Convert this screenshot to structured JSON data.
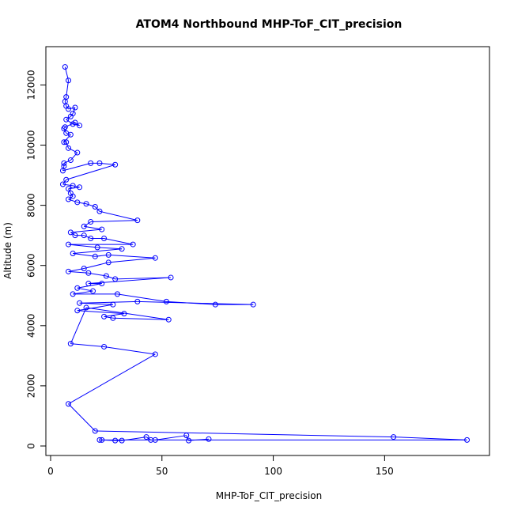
{
  "chart_data": {
    "type": "line",
    "title": "ATOM4 Northbound MHP-ToF_CIT_precision",
    "xlabel": "MHP-ToF_CIT_precision",
    "ylabel": "Altitude (m)",
    "xlim": [
      0,
      190
    ],
    "ylim": [
      0,
      12800
    ],
    "xticks": [
      0,
      50,
      100,
      150
    ],
    "yticks": [
      0,
      2000,
      4000,
      6000,
      8000,
      10000,
      12000
    ],
    "grid": false,
    "legend": "none",
    "series_color": "#0000ff",
    "marker": "open-circle",
    "series": [
      {
        "values": [
          [
            6.5,
            12600
          ],
          [
            8,
            12150
          ],
          [
            7,
            11600
          ],
          [
            6.5,
            11450
          ],
          [
            7,
            11300
          ],
          [
            8,
            11200
          ],
          [
            11,
            11250
          ],
          [
            10,
            11050
          ],
          [
            9,
            10950
          ],
          [
            7,
            10850
          ],
          [
            10,
            10700
          ],
          [
            13,
            10650
          ],
          [
            11,
            10750
          ],
          [
            6.5,
            10600
          ],
          [
            6,
            10550
          ],
          [
            7,
            10400
          ],
          [
            9,
            10350
          ],
          [
            6,
            10100
          ],
          [
            7,
            10100
          ],
          [
            8,
            9900
          ],
          [
            12,
            9750
          ],
          [
            9,
            9500
          ],
          [
            6,
            9400
          ],
          [
            6,
            9300
          ],
          [
            5.5,
            9150
          ],
          [
            18,
            9400
          ],
          [
            22,
            9400
          ],
          [
            29,
            9350
          ],
          [
            7,
            8850
          ],
          [
            5.5,
            8700
          ],
          [
            10,
            8650
          ],
          [
            13,
            8600
          ],
          [
            8,
            8550
          ],
          [
            9,
            8400
          ],
          [
            10,
            8300
          ],
          [
            8,
            8200
          ],
          [
            12,
            8100
          ],
          [
            16,
            8050
          ],
          [
            20,
            7950
          ],
          [
            22,
            7800
          ],
          [
            39,
            7500
          ],
          [
            18,
            7450
          ],
          [
            15,
            7300
          ],
          [
            23,
            7200
          ],
          [
            9,
            7100
          ],
          [
            11,
            7000
          ],
          [
            15,
            7000
          ],
          [
            18,
            6900
          ],
          [
            24,
            6900
          ],
          [
            37,
            6700
          ],
          [
            8,
            6700
          ],
          [
            21,
            6600
          ],
          [
            32,
            6550
          ],
          [
            10,
            6400
          ],
          [
            20,
            6300
          ],
          [
            26,
            6350
          ],
          [
            47,
            6250
          ],
          [
            26,
            6100
          ],
          [
            15,
            5900
          ],
          [
            8,
            5800
          ],
          [
            17,
            5750
          ],
          [
            25,
            5650
          ],
          [
            29,
            5550
          ],
          [
            54,
            5600
          ],
          [
            17,
            5400
          ],
          [
            23,
            5400
          ],
          [
            12,
            5250
          ],
          [
            19,
            5150
          ],
          [
            10,
            5050
          ],
          [
            30,
            5050
          ],
          [
            52,
            4800
          ],
          [
            74,
            4700
          ],
          [
            91,
            4700
          ],
          [
            39,
            4800
          ],
          [
            13,
            4750
          ],
          [
            28,
            4700
          ],
          [
            12,
            4500
          ],
          [
            33,
            4400
          ],
          [
            24,
            4300
          ],
          [
            28,
            4250
          ],
          [
            53,
            4200
          ],
          [
            16,
            4600
          ],
          [
            9,
            3400
          ],
          [
            24,
            3300
          ],
          [
            47,
            3050
          ],
          [
            8,
            1400
          ],
          [
            20,
            500
          ],
          [
            154,
            300
          ],
          [
            187,
            200
          ],
          [
            22,
            200
          ],
          [
            23,
            200
          ],
          [
            29,
            180
          ],
          [
            32,
            180
          ],
          [
            43,
            300
          ],
          [
            45,
            200
          ],
          [
            47,
            200
          ],
          [
            61,
            350
          ],
          [
            62,
            180
          ],
          [
            71,
            230
          ]
        ]
      }
    ]
  }
}
